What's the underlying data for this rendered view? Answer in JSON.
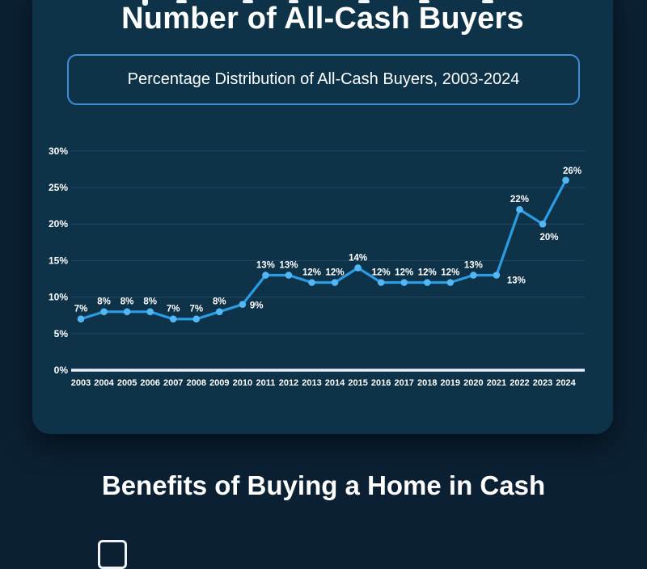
{
  "theme": {
    "page-bg": "#0b2033",
    "panel-bg": "#0e3349",
    "accent-border": "#3e8fd6",
    "line-color": "#2b9be4",
    "point-color": "#52b7f2",
    "grid-color": "#2b5270",
    "axis-color": "#e9f2f9",
    "text-color": "#ffffff"
  },
  "header": {
    "title": "Number of All-Cash Buyers",
    "subtitle": "Percentage Distribution of All-Cash Buyers, 2003-2024"
  },
  "benefits": {
    "title": "Benefits of Buying a Home in Cash"
  },
  "chart_data": {
    "type": "line",
    "title": "Number of All-Cash Buyers",
    "subtitle": "Percentage Distribution of All-Cash Buyers, 2003-2024",
    "x": [
      "2003",
      "2004",
      "2005",
      "2006",
      "2007",
      "2008",
      "2009",
      "2010",
      "2011",
      "2012",
      "2013",
      "2014",
      "2015",
      "2016",
      "2017",
      "2018",
      "2019",
      "2020",
      "2021",
      "2022",
      "2023",
      "2024"
    ],
    "values": [
      7,
      8,
      8,
      8,
      7,
      7,
      8,
      9,
      13,
      13,
      12,
      12,
      14,
      12,
      12,
      12,
      12,
      13,
      13,
      22,
      20,
      26
    ],
    "labels": [
      "7%",
      "8%",
      "8%",
      "8%",
      "7%",
      "7%",
      "8%",
      "9%",
      "13%",
      "13%",
      "12%",
      "12%",
      "14%",
      "12%",
      "12%",
      "12%",
      "12%",
      "13%",
      "13%",
      "22%",
      "20%",
      "26%"
    ],
    "label_pos": [
      "above",
      "above",
      "above",
      "above",
      "above",
      "above",
      "above",
      "right",
      "above",
      "above",
      "above",
      "above",
      "above",
      "above",
      "above",
      "above",
      "above",
      "above",
      "below-right",
      "above",
      "below",
      "above-right"
    ],
    "y_ticks": [
      "0%",
      "5%",
      "10%",
      "15%",
      "20%",
      "25%",
      "30%"
    ],
    "ylim": [
      0,
      30
    ],
    "grid": true,
    "legend": "none"
  }
}
